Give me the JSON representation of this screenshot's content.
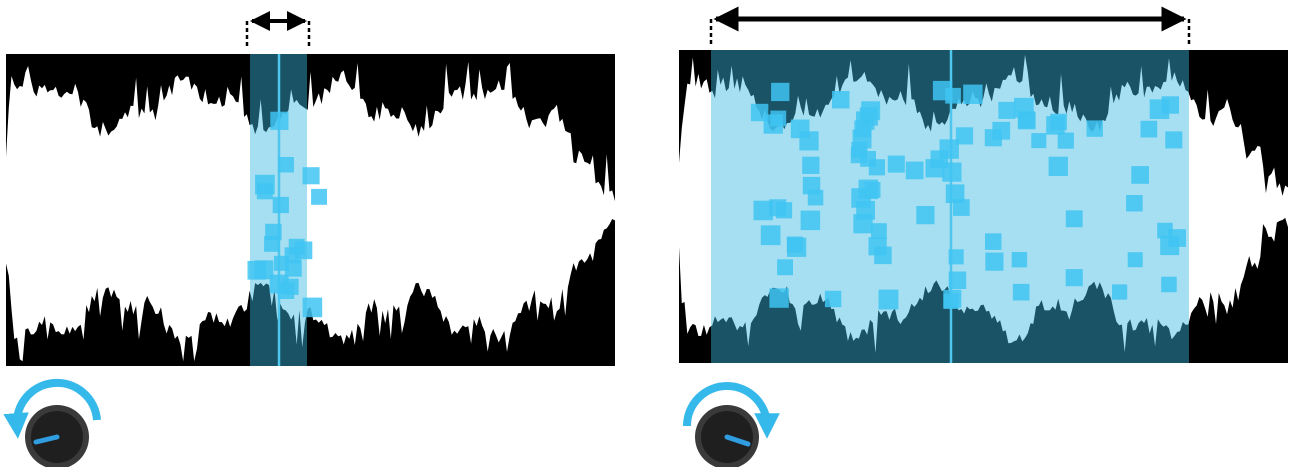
{
  "colors": {
    "background": "#ffffff",
    "waveform_bg": "#000000",
    "waveform": "#ffffff",
    "window_fill": "#37b7df",
    "window_line": "#4fc6ee",
    "grain": "#3fc4f2",
    "arrow": "#000000",
    "knob_body": "#2a2a2a",
    "knob_ring": "#3a3a3a",
    "knob_arc": "#35b8ea",
    "knob_pointer": "#2f9de0"
  },
  "panels": [
    {
      "id": "narrow",
      "window_fraction": 0.094,
      "knob": {
        "arc_direction": "counter-clockwise",
        "pointer": "low"
      }
    },
    {
      "id": "wide",
      "window_fraction": 0.78,
      "knob": {
        "arc_direction": "clockwise",
        "pointer": "high"
      }
    }
  ]
}
